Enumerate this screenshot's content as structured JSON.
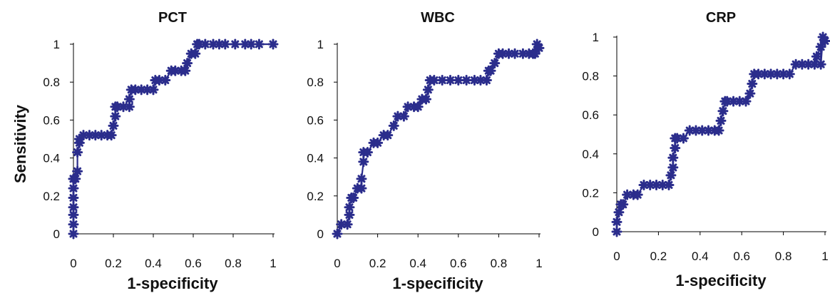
{
  "chart_data": [
    {
      "type": "line",
      "title": "PCT",
      "xlabel": "1-specificity",
      "ylabel": "Sensitivity",
      "xlim": [
        0,
        1
      ],
      "ylim": [
        0,
        1
      ],
      "xticks": [
        "0",
        "0.2",
        "0.4",
        "0.6",
        "0.8",
        "1"
      ],
      "yticks": [
        "0",
        "0.2",
        "0.4",
        "0.6",
        "0.8",
        "1"
      ],
      "color": "#2b2d8c",
      "marker": "plus",
      "x": [
        0,
        0,
        0,
        0,
        0,
        0,
        0,
        0,
        0.01,
        0.02,
        0.02,
        0.03,
        0.03,
        0.05,
        0.08,
        0.11,
        0.14,
        0.17,
        0.19,
        0.2,
        0.21,
        0.21,
        0.22,
        0.25,
        0.28,
        0.28,
        0.29,
        0.31,
        0.34,
        0.37,
        0.4,
        0.41,
        0.43,
        0.46,
        0.49,
        0.51,
        0.54,
        0.56,
        0.57,
        0.59,
        0.61,
        0.62,
        0.63,
        0.66,
        0.7,
        0.73,
        0.76,
        0.81,
        0.86,
        0.89,
        0.93,
        1
      ],
      "y": [
        0,
        0.05,
        0.1,
        0.14,
        0.19,
        0.24,
        0.29,
        0.29,
        0.29,
        0.33,
        0.43,
        0.48,
        0.5,
        0.52,
        0.52,
        0.52,
        0.52,
        0.52,
        0.52,
        0.57,
        0.62,
        0.67,
        0.67,
        0.67,
        0.67,
        0.71,
        0.76,
        0.76,
        0.76,
        0.76,
        0.76,
        0.81,
        0.81,
        0.81,
        0.86,
        0.86,
        0.86,
        0.86,
        0.9,
        0.95,
        0.95,
        1,
        1,
        1,
        1,
        1,
        1,
        1,
        1,
        1,
        1,
        1
      ]
    },
    {
      "type": "line",
      "title": "WBC",
      "xlabel": "1-specificity",
      "ylabel": "",
      "xlim": [
        0,
        1
      ],
      "ylim": [
        0,
        1
      ],
      "xticks": [
        "0",
        "0.2",
        "0.4",
        "0.6",
        "0.8",
        "1"
      ],
      "yticks": [
        "0",
        "0.2",
        "0.4",
        "0.6",
        "0.8",
        "1"
      ],
      "color": "#2b2d8c",
      "marker": "plus",
      "x": [
        0,
        0.02,
        0.05,
        0.06,
        0.06,
        0.07,
        0.08,
        0.1,
        0.12,
        0.12,
        0.13,
        0.13,
        0.15,
        0.18,
        0.2,
        0.23,
        0.25,
        0.28,
        0.3,
        0.33,
        0.35,
        0.38,
        0.4,
        0.42,
        0.44,
        0.45,
        0.46,
        0.48,
        0.52,
        0.56,
        0.6,
        0.64,
        0.68,
        0.71,
        0.74,
        0.75,
        0.76,
        0.78,
        0.8,
        0.82,
        0.85,
        0.88,
        0.92,
        0.95,
        0.97,
        0.98,
        0.99,
        1
      ],
      "y": [
        0,
        0.05,
        0.05,
        0.1,
        0.14,
        0.19,
        0.19,
        0.24,
        0.24,
        0.29,
        0.38,
        0.43,
        0.43,
        0.48,
        0.48,
        0.52,
        0.52,
        0.57,
        0.62,
        0.62,
        0.67,
        0.67,
        0.67,
        0.71,
        0.71,
        0.76,
        0.81,
        0.81,
        0.81,
        0.81,
        0.81,
        0.81,
        0.81,
        0.81,
        0.81,
        0.86,
        0.86,
        0.9,
        0.95,
        0.95,
        0.95,
        0.95,
        0.95,
        0.95,
        0.95,
        0.95,
        1,
        0.98
      ]
    },
    {
      "type": "line",
      "title": "CRP",
      "xlabel": "1-specificity",
      "ylabel": "",
      "xlim": [
        0,
        1
      ],
      "ylim": [
        0,
        1
      ],
      "xticks": [
        "0",
        "0.2",
        "0.4",
        "0.6",
        "0.8",
        "1"
      ],
      "yticks": [
        "0",
        "0.2",
        "0.4",
        "0.6",
        "0.8",
        "1"
      ],
      "color": "#2b2d8c",
      "marker": "plus",
      "x": [
        0,
        0,
        0.01,
        0.02,
        0.03,
        0.05,
        0.08,
        0.1,
        0.13,
        0.16,
        0.19,
        0.22,
        0.25,
        0.26,
        0.27,
        0.27,
        0.28,
        0.28,
        0.29,
        0.32,
        0.35,
        0.38,
        0.41,
        0.44,
        0.47,
        0.49,
        0.5,
        0.51,
        0.52,
        0.53,
        0.56,
        0.59,
        0.62,
        0.64,
        0.65,
        0.66,
        0.68,
        0.71,
        0.74,
        0.77,
        0.8,
        0.83,
        0.86,
        0.89,
        0.92,
        0.95,
        0.96,
        0.98,
        0.98,
        0.99,
        1
      ],
      "y": [
        0,
        0.05,
        0.1,
        0.14,
        0.14,
        0.19,
        0.19,
        0.19,
        0.24,
        0.24,
        0.24,
        0.24,
        0.24,
        0.29,
        0.33,
        0.38,
        0.43,
        0.48,
        0.48,
        0.48,
        0.52,
        0.52,
        0.52,
        0.52,
        0.52,
        0.52,
        0.57,
        0.62,
        0.67,
        0.67,
        0.67,
        0.67,
        0.67,
        0.71,
        0.76,
        0.81,
        0.81,
        0.81,
        0.81,
        0.81,
        0.81,
        0.81,
        0.86,
        0.86,
        0.86,
        0.86,
        0.9,
        0.95,
        0.86,
        1,
        0.98
      ]
    }
  ]
}
